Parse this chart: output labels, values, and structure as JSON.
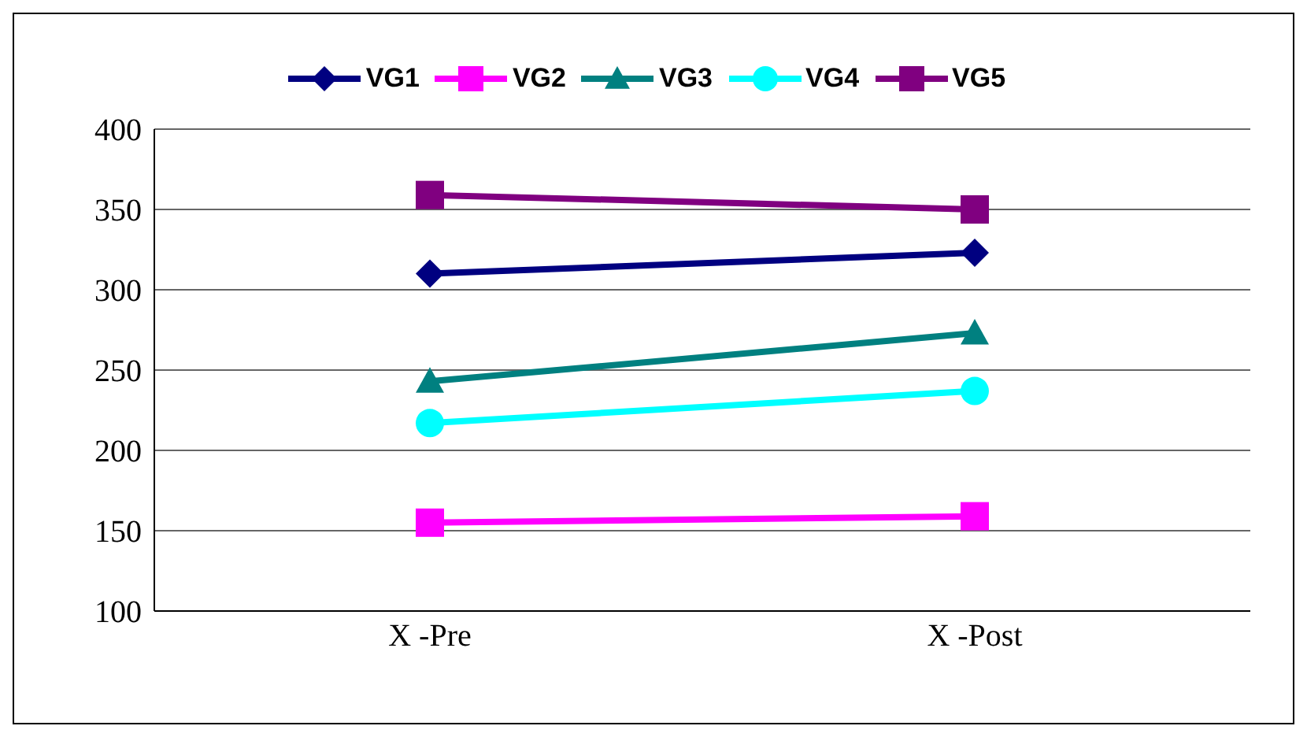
{
  "chart_data": {
    "type": "line",
    "categories": [
      "X -Pre",
      "X -Post"
    ],
    "series": [
      {
        "name": "VG1",
        "color": "#000080",
        "marker": "diamond",
        "values": [
          310,
          323
        ]
      },
      {
        "name": "VG2",
        "color": "#ff00ff",
        "marker": "square",
        "values": [
          155,
          159
        ]
      },
      {
        "name": "VG3",
        "color": "#008080",
        "marker": "triangle",
        "values": [
          243,
          273
        ]
      },
      {
        "name": "VG4",
        "color": "#00ffff",
        "marker": "circle",
        "values": [
          217,
          237
        ]
      },
      {
        "name": "VG5",
        "color": "#800080",
        "marker": "square",
        "values": [
          359,
          350
        ]
      }
    ],
    "ylim": [
      100,
      400
    ],
    "yticks": [
      100,
      150,
      200,
      250,
      300,
      350,
      400
    ],
    "grid": "y",
    "legend": "top",
    "line_style": "solid"
  }
}
